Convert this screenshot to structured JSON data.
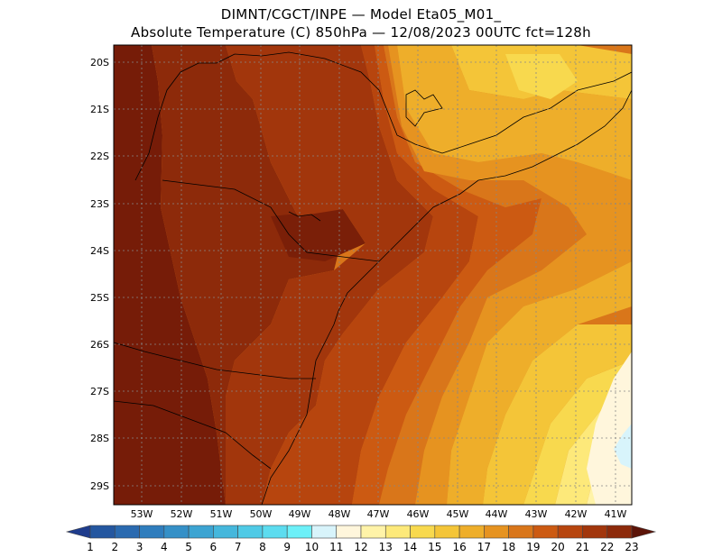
{
  "header": {
    "line1": "DIMNT/CGCT/INPE —  Model Eta05_M01_",
    "line2": "Absolute Temperature (C) 850hPa —  12/08/2023 00UTC fct=128h"
  },
  "map": {
    "lat_labels": [
      "20S",
      "21S",
      "22S",
      "23S",
      "24S",
      "25S",
      "26S",
      "27S",
      "28S",
      "29S"
    ],
    "lon_labels": [
      "53W",
      "52W",
      "51W",
      "50W",
      "49W",
      "48W",
      "47W",
      "46W",
      "45W",
      "44W",
      "43W",
      "42W",
      "41W"
    ],
    "lon_range": [
      -53.9,
      -40.6
    ],
    "lat_range": [
      -29.5,
      -19.7
    ],
    "field_description": "850 hPa temperature bands, warm 20-23 C inland decreasing eastward to 11-14 C offshore"
  },
  "colorbar": {
    "levels": [
      "1",
      "2",
      "3",
      "4",
      "5",
      "6",
      "7",
      "8",
      "9",
      "10",
      "11",
      "12",
      "13",
      "14",
      "15",
      "16",
      "17",
      "18",
      "19",
      "20",
      "21",
      "22",
      "23"
    ],
    "colors": [
      "#1e3c8c",
      "#2457a0",
      "#2a6ab0",
      "#2f7dbd",
      "#3590c7",
      "#3ca4d2",
      "#45b7dc",
      "#4fcae6",
      "#5cdcef",
      "#6cf0f8",
      "#d8f4fb",
      "#fff6dc",
      "#fff3a8",
      "#fde97a",
      "#f8d94e",
      "#f4c538",
      "#eeae2a",
      "#e69320",
      "#d9761a",
      "#cc5a12",
      "#b7450e",
      "#a2360c",
      "#8d2a0a",
      "#761c08",
      "#5c1408"
    ]
  }
}
